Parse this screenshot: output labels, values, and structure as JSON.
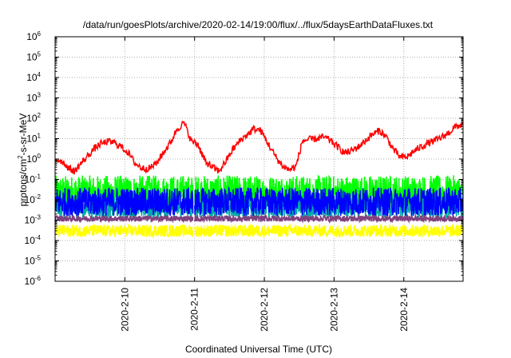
{
  "chart_data": {
    "type": "line",
    "title": "/data/run/goesPlots/archive/2020-02-14/19:00/flux/../flux/5daysEarthDataFluxes.txt",
    "xlabel": "Coordinated Universal Time (UTC)",
    "ylabel_base": "protons/cm",
    "ylabel_exp": "2",
    "ylabel_rest": "-s-sr-MeV",
    "yscale": "log",
    "ylim": [
      1e-06,
      1000000.0
    ],
    "xlim": [
      0,
      5.85
    ],
    "grid": true,
    "y_ticks": [
      {
        "exp": -6,
        "label": "10",
        "sup": "-6"
      },
      {
        "exp": -5,
        "label": "10",
        "sup": "-5"
      },
      {
        "exp": -4,
        "label": "10",
        "sup": "-4"
      },
      {
        "exp": -3,
        "label": "10",
        "sup": "-3"
      },
      {
        "exp": -2,
        "label": "10",
        "sup": "-2"
      },
      {
        "exp": -1,
        "label": "10",
        "sup": "-1"
      },
      {
        "exp": 0,
        "label": "10",
        "sup": "0"
      },
      {
        "exp": 1,
        "label": "10",
        "sup": "1"
      },
      {
        "exp": 2,
        "label": "10",
        "sup": "2"
      },
      {
        "exp": 3,
        "label": "10",
        "sup": "3"
      },
      {
        "exp": 4,
        "label": "10",
        "sup": "4"
      },
      {
        "exp": 5,
        "label": "10",
        "sup": "5"
      },
      {
        "exp": 6,
        "label": "10",
        "sup": "6"
      }
    ],
    "x_ticks": [
      {
        "x": 1.0,
        "label": "2020-2-10"
      },
      {
        "x": 2.0,
        "label": "2020-2-11"
      },
      {
        "x": 3.0,
        "label": "2020-2-12"
      },
      {
        "x": 4.0,
        "label": "2020-2-13"
      },
      {
        "x": 5.0,
        "label": "2020-2-14"
      }
    ],
    "series": [
      {
        "color": "#ff0000",
        "x": [
          0.0,
          0.1,
          0.2,
          0.28,
          0.35,
          0.45,
          0.55,
          0.65,
          0.75,
          0.85,
          0.95,
          1.05,
          1.15,
          1.25,
          1.35,
          1.45,
          1.55,
          1.65,
          1.75,
          1.85,
          1.95,
          2.05,
          2.1,
          2.15,
          2.25,
          2.35,
          2.45,
          2.55,
          2.65,
          2.75,
          2.85,
          2.95,
          3.05,
          3.15,
          3.25,
          3.35,
          3.45,
          3.55,
          3.65,
          3.75,
          3.85,
          3.95,
          4.05,
          4.15,
          4.25,
          4.35,
          4.45,
          4.55,
          4.65,
          4.75,
          4.85,
          4.95,
          5.05,
          5.15,
          5.25,
          5.35,
          5.45,
          5.55,
          5.65,
          5.75,
          5.85
        ],
        "y": [
          1.0,
          0.8,
          0.35,
          0.25,
          0.5,
          1.2,
          3.0,
          5.5,
          7.0,
          6.5,
          4.0,
          2.0,
          0.6,
          0.35,
          0.35,
          0.6,
          2.0,
          6.0,
          30,
          60,
          8,
          5,
          2.0,
          0.8,
          0.4,
          0.25,
          0.8,
          3.0,
          8.0,
          15,
          30,
          25,
          6,
          1.5,
          0.5,
          0.3,
          0.4,
          8,
          9,
          10,
          12,
          8,
          4,
          2,
          2.5,
          4,
          8,
          16,
          25,
          12,
          3,
          1.2,
          1.3,
          2.5,
          4,
          6,
          8,
          12,
          20,
          40,
          50
        ]
      },
      {
        "color": "#00ff00",
        "level": 0.02,
        "spread": 0.9
      },
      {
        "color": "#00aaaa",
        "level": 0.004,
        "spread": 0.5
      },
      {
        "color": "#0000ff",
        "level": 0.008,
        "spread": 0.7
      },
      {
        "color": "#804080",
        "level": 0.0012,
        "spread": 0.15
      },
      {
        "color": "#ffff00",
        "level": 0.0003,
        "spread": 0.3
      }
    ],
    "data_gap_x": [
      1.98,
      2.0
    ]
  }
}
